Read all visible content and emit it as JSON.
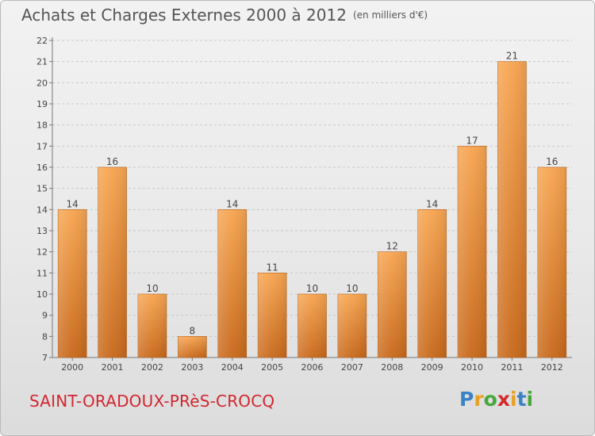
{
  "header": {
    "title": "Achats et Charges Externes 2000 à 2012",
    "unit": "(en milliers d'€)"
  },
  "footer": {
    "commune": "SAINT-ORADOUX-PRèS-CROCQ",
    "logo_letters": [
      "P",
      "r",
      "o",
      "x",
      "i",
      "t",
      "i"
    ],
    "logo_colors": [
      "#3b82c4",
      "#e8a020",
      "#46a83a",
      "#d42a2a",
      "#e8a020",
      "#3b82c4",
      "#46a83a"
    ]
  },
  "chart_data": {
    "type": "bar",
    "categories": [
      "2000",
      "2001",
      "2002",
      "2003",
      "2004",
      "2005",
      "2006",
      "2007",
      "2008",
      "2009",
      "2010",
      "2011",
      "2012"
    ],
    "values": [
      14,
      16,
      10,
      8,
      14,
      11,
      10,
      10,
      12,
      14,
      17,
      21,
      16
    ],
    "data_labels": [
      "14",
      "16",
      "10",
      "8",
      "14",
      "11",
      "10",
      "10",
      "12",
      "14",
      "17",
      "21",
      "16"
    ],
    "yticks": [
      7,
      8,
      9,
      10,
      11,
      12,
      13,
      14,
      15,
      16,
      17,
      18,
      19,
      20,
      21,
      22
    ],
    "ylim": [
      7,
      22
    ],
    "grid": true,
    "bar_color_top": "#f7a550",
    "bar_color_bottom": "#c8681a"
  }
}
